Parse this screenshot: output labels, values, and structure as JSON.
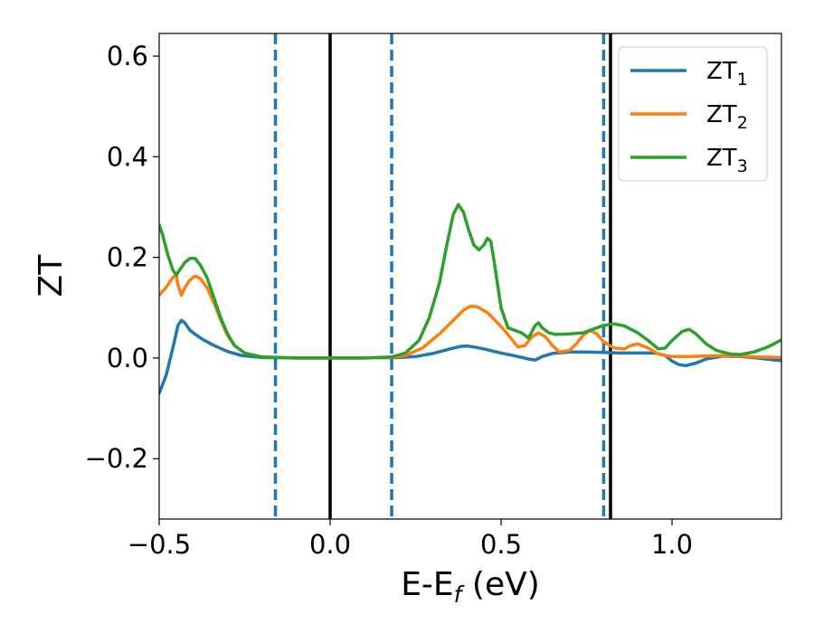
{
  "chart_data": {
    "type": "line",
    "title": "",
    "xlabel": "E-E",
    "xlabel_subscript": "f",
    "xlabel_unit": " (eV)",
    "ylabel": "ZT",
    "xlim": [
      -0.5,
      1.32
    ],
    "ylim": [
      -0.32,
      0.645
    ],
    "xticks": [
      {
        "value": -0.5,
        "label": "−0.5"
      },
      {
        "value": 0.0,
        "label": "0.0"
      },
      {
        "value": 0.5,
        "label": "0.5"
      },
      {
        "value": 1.0,
        "label": "1.0"
      }
    ],
    "yticks": [
      {
        "value": -0.2,
        "label": "−0.2"
      },
      {
        "value": 0.0,
        "label": "0.0"
      },
      {
        "value": 0.2,
        "label": "0.2"
      },
      {
        "value": 0.4,
        "label": "0.4"
      },
      {
        "value": 0.6,
        "label": "0.6"
      }
    ],
    "grid": false,
    "legend_position": "top-right",
    "vlines": [
      {
        "x": -0.16,
        "style": "dashed",
        "color": "#1f77b4"
      },
      {
        "x": 0.0,
        "style": "solid",
        "color": "#000000"
      },
      {
        "x": 0.18,
        "style": "dashed",
        "color": "#1f77b4"
      },
      {
        "x": 0.8,
        "style": "dashed",
        "color": "#1f77b4"
      },
      {
        "x": 0.82,
        "style": "solid",
        "color": "#000000"
      }
    ],
    "series": [
      {
        "name": "ZT",
        "name_subscript": "1",
        "color": "#1f77b4",
        "points": [
          [
            -0.5,
            -0.07
          ],
          [
            -0.48,
            -0.035
          ],
          [
            -0.46,
            0.02
          ],
          [
            -0.445,
            0.065
          ],
          [
            -0.435,
            0.075
          ],
          [
            -0.425,
            0.07
          ],
          [
            -0.41,
            0.055
          ],
          [
            -0.39,
            0.045
          ],
          [
            -0.37,
            0.036
          ],
          [
            -0.34,
            0.025
          ],
          [
            -0.3,
            0.013
          ],
          [
            -0.26,
            0.005
          ],
          [
            -0.2,
            0.001
          ],
          [
            -0.1,
            0.0
          ],
          [
            0.0,
            0.0
          ],
          [
            0.1,
            0.0
          ],
          [
            0.2,
            0.001
          ],
          [
            0.25,
            0.003
          ],
          [
            0.3,
            0.009
          ],
          [
            0.35,
            0.018
          ],
          [
            0.38,
            0.023
          ],
          [
            0.4,
            0.024
          ],
          [
            0.42,
            0.022
          ],
          [
            0.45,
            0.018
          ],
          [
            0.5,
            0.01
          ],
          [
            0.55,
            0.003
          ],
          [
            0.58,
            -0.002
          ],
          [
            0.6,
            -0.004
          ],
          [
            0.62,
            0.003
          ],
          [
            0.65,
            0.009
          ],
          [
            0.7,
            0.012
          ],
          [
            0.75,
            0.012
          ],
          [
            0.8,
            0.011
          ],
          [
            0.85,
            0.01
          ],
          [
            0.9,
            0.01
          ],
          [
            0.95,
            0.01
          ],
          [
            0.98,
            0.005
          ],
          [
            1.0,
            -0.006
          ],
          [
            1.02,
            -0.013
          ],
          [
            1.04,
            -0.015
          ],
          [
            1.07,
            -0.01
          ],
          [
            1.1,
            -0.002
          ],
          [
            1.15,
            0.004
          ],
          [
            1.2,
            0.003
          ],
          [
            1.25,
            0.0
          ],
          [
            1.3,
            -0.004
          ],
          [
            1.32,
            -0.005
          ]
        ]
      },
      {
        "name": "ZT",
        "name_subscript": "2",
        "color": "#ff7f0e",
        "points": [
          [
            -0.5,
            0.125
          ],
          [
            -0.48,
            0.14
          ],
          [
            -0.46,
            0.16
          ],
          [
            -0.45,
            0.165
          ],
          [
            -0.445,
            0.145
          ],
          [
            -0.435,
            0.125
          ],
          [
            -0.425,
            0.14
          ],
          [
            -0.41,
            0.155
          ],
          [
            -0.395,
            0.163
          ],
          [
            -0.38,
            0.158
          ],
          [
            -0.36,
            0.14
          ],
          [
            -0.34,
            0.11
          ],
          [
            -0.32,
            0.075
          ],
          [
            -0.3,
            0.045
          ],
          [
            -0.28,
            0.025
          ],
          [
            -0.25,
            0.01
          ],
          [
            -0.2,
            0.002
          ],
          [
            -0.1,
            0.0
          ],
          [
            0.0,
            0.0
          ],
          [
            0.1,
            0.0
          ],
          [
            0.18,
            0.001
          ],
          [
            0.22,
            0.005
          ],
          [
            0.27,
            0.02
          ],
          [
            0.32,
            0.048
          ],
          [
            0.36,
            0.075
          ],
          [
            0.39,
            0.095
          ],
          [
            0.41,
            0.103
          ],
          [
            0.43,
            0.102
          ],
          [
            0.46,
            0.09
          ],
          [
            0.49,
            0.07
          ],
          [
            0.51,
            0.055
          ],
          [
            0.53,
            0.038
          ],
          [
            0.55,
            0.022
          ],
          [
            0.57,
            0.025
          ],
          [
            0.59,
            0.042
          ],
          [
            0.61,
            0.05
          ],
          [
            0.63,
            0.042
          ],
          [
            0.65,
            0.025
          ],
          [
            0.67,
            0.012
          ],
          [
            0.7,
            0.015
          ],
          [
            0.72,
            0.028
          ],
          [
            0.74,
            0.045
          ],
          [
            0.76,
            0.055
          ],
          [
            0.78,
            0.048
          ],
          [
            0.8,
            0.032
          ],
          [
            0.83,
            0.02
          ],
          [
            0.86,
            0.018
          ],
          [
            0.88,
            0.025
          ],
          [
            0.9,
            0.028
          ],
          [
            0.93,
            0.02
          ],
          [
            0.96,
            0.008
          ],
          [
            1.0,
            0.003
          ],
          [
            1.05,
            0.003
          ],
          [
            1.1,
            0.004
          ],
          [
            1.15,
            0.005
          ],
          [
            1.2,
            0.004
          ],
          [
            1.25,
            0.002
          ],
          [
            1.32,
            0.001
          ]
        ]
      },
      {
        "name": "ZT",
        "name_subscript": "3",
        "color": "#2ca02c",
        "points": [
          [
            -0.5,
            0.265
          ],
          [
            -0.49,
            0.245
          ],
          [
            -0.475,
            0.205
          ],
          [
            -0.46,
            0.175
          ],
          [
            -0.45,
            0.165
          ],
          [
            -0.44,
            0.175
          ],
          [
            -0.425,
            0.19
          ],
          [
            -0.41,
            0.198
          ],
          [
            -0.395,
            0.198
          ],
          [
            -0.38,
            0.185
          ],
          [
            -0.36,
            0.16
          ],
          [
            -0.34,
            0.12
          ],
          [
            -0.32,
            0.08
          ],
          [
            -0.3,
            0.048
          ],
          [
            -0.28,
            0.025
          ],
          [
            -0.25,
            0.01
          ],
          [
            -0.2,
            0.002
          ],
          [
            -0.1,
            0.0
          ],
          [
            0.0,
            0.0
          ],
          [
            0.1,
            0.0
          ],
          [
            0.18,
            0.002
          ],
          [
            0.22,
            0.01
          ],
          [
            0.26,
            0.035
          ],
          [
            0.29,
            0.08
          ],
          [
            0.32,
            0.15
          ],
          [
            0.34,
            0.22
          ],
          [
            0.36,
            0.285
          ],
          [
            0.375,
            0.305
          ],
          [
            0.39,
            0.29
          ],
          [
            0.405,
            0.255
          ],
          [
            0.42,
            0.225
          ],
          [
            0.435,
            0.215
          ],
          [
            0.45,
            0.225
          ],
          [
            0.46,
            0.238
          ],
          [
            0.47,
            0.232
          ],
          [
            0.48,
            0.19
          ],
          [
            0.5,
            0.1
          ],
          [
            0.52,
            0.06
          ],
          [
            0.54,
            0.055
          ],
          [
            0.56,
            0.05
          ],
          [
            0.58,
            0.04
          ],
          [
            0.6,
            0.065
          ],
          [
            0.61,
            0.07
          ],
          [
            0.62,
            0.06
          ],
          [
            0.64,
            0.05
          ],
          [
            0.66,
            0.047
          ],
          [
            0.7,
            0.048
          ],
          [
            0.74,
            0.05
          ],
          [
            0.78,
            0.06
          ],
          [
            0.8,
            0.065
          ],
          [
            0.83,
            0.068
          ],
          [
            0.86,
            0.064
          ],
          [
            0.9,
            0.05
          ],
          [
            0.93,
            0.035
          ],
          [
            0.96,
            0.018
          ],
          [
            0.98,
            0.02
          ],
          [
            1.0,
            0.035
          ],
          [
            1.03,
            0.053
          ],
          [
            1.05,
            0.057
          ],
          [
            1.07,
            0.048
          ],
          [
            1.1,
            0.028
          ],
          [
            1.13,
            0.015
          ],
          [
            1.17,
            0.008
          ],
          [
            1.2,
            0.007
          ],
          [
            1.24,
            0.012
          ],
          [
            1.28,
            0.022
          ],
          [
            1.32,
            0.036
          ]
        ]
      }
    ]
  }
}
